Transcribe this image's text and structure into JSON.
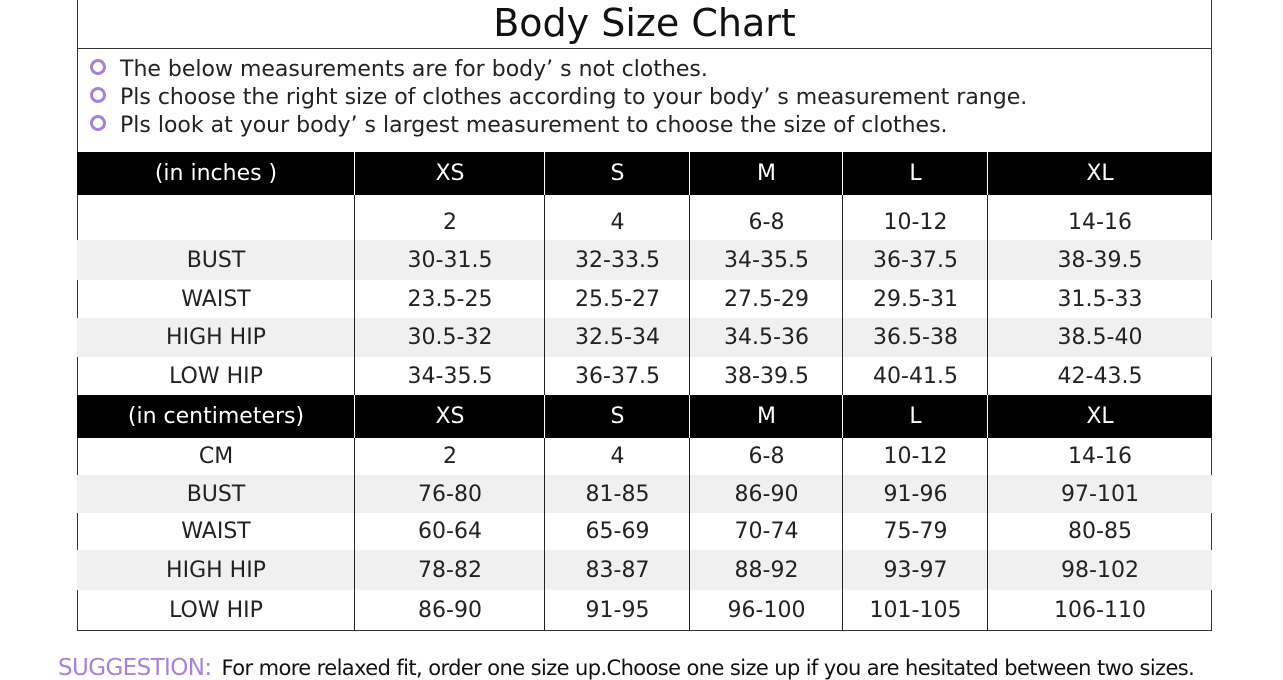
{
  "title": "Body  Size  Chart",
  "notes": [
    "The below measurements are for  body’ s not clothes.",
    "Pls choose the right size of clothes according to your body’ s  measurement range.",
    "Pls look  at your body’ s  largest measurement to choose the size of clothes."
  ],
  "tables": [
    {
      "header": [
        "(in  inches )",
        "XS",
        "S",
        "M",
        "L",
        "XL"
      ],
      "rows": [
        {
          "label": null,
          "cells": [
            "2",
            "4",
            "6-8",
            "10-12",
            "14-16"
          ]
        },
        {
          "label": "BUST",
          "cells": [
            "30-31.5",
            "32-33.5",
            "34-35.5",
            "36-37.5",
            "38-39.5"
          ]
        },
        {
          "label": "WAIST",
          "cells": [
            "23.5-25",
            "25.5-27",
            "27.5-29",
            "29.5-31",
            "31.5-33"
          ]
        },
        {
          "label": "HIGH HIP",
          "cells": [
            "30.5-32",
            "32.5-34",
            "34.5-36",
            "36.5-38",
            "38.5-40"
          ]
        },
        {
          "label": "LOW HIP",
          "cells": [
            "34-35.5",
            "36-37.5",
            "38-39.5",
            "40-41.5",
            "42-43.5"
          ]
        }
      ]
    },
    {
      "header": [
        "(in centimeters)",
        "XS",
        "S",
        "M",
        "L",
        "XL"
      ],
      "rows": [
        {
          "label": "CM",
          "cells": [
            "2",
            "4",
            "6-8",
            "10-12",
            "14-16"
          ]
        },
        {
          "label": "BUST",
          "cells": [
            "76-80",
            "81-85",
            "86-90",
            "91-96",
            "97-101"
          ]
        },
        {
          "label": "WAIST",
          "cells": [
            "60-64",
            "65-69",
            "70-74",
            "75-79",
            "80-85"
          ]
        },
        {
          "label": "HIGH HIP",
          "cells": [
            "78-82",
            "83-87",
            "88-92",
            "93-97",
            "98-102"
          ]
        },
        {
          "label": "LOW HIP",
          "cells": [
            "86-90",
            "91-95",
            "96-100",
            "101-105",
            "106-110"
          ]
        }
      ]
    }
  ],
  "suggestion": {
    "label": "SUGGESTION:",
    "text": "For more relaxed fit, order one size up.Choose one size up if you are hesitated between two sizes."
  }
}
